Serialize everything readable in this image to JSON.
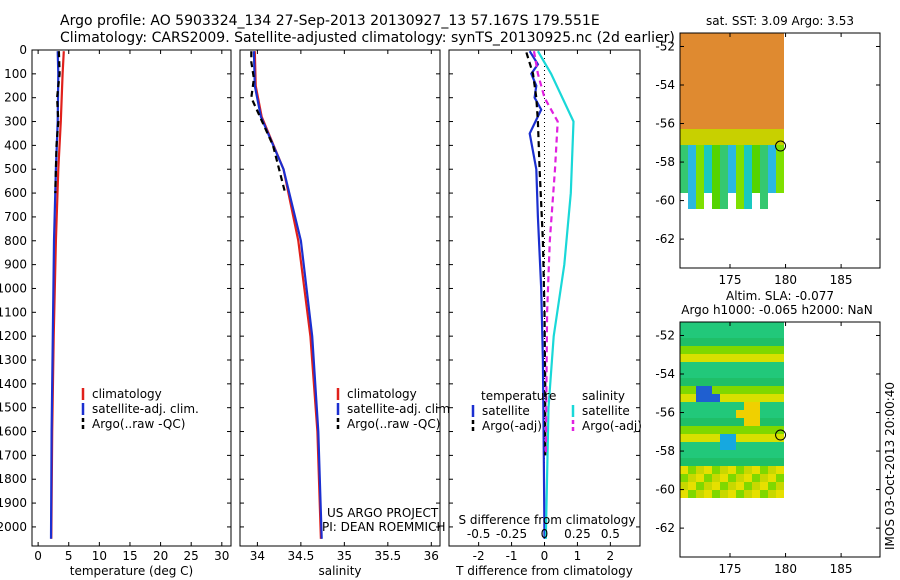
{
  "header": {
    "line1": "Argo profile: AO 5903324_134 27-Sep-2013 20130927_13 57.167S 179.551E",
    "line2": "Climatology: CARS2009. Satellite-adjusted climatology: synTS_20130925.nc (2d earlier)"
  },
  "watermark": "IMOS 03-Oct-2013 20:00:40",
  "colors": {
    "climatology": "#e0201b",
    "satellite": "#1b2fd0",
    "argo": "#000000",
    "sat_s": "#19d8d8",
    "argo_s": "#e020e0"
  },
  "chart_data": [
    {
      "type": "line",
      "id": "temperature",
      "xlabel": "temperature (deg C)",
      "ylabel": "",
      "xlim": [
        -1,
        31.5
      ],
      "ylim": [
        2080,
        0
      ],
      "xticks": [
        0,
        5,
        10,
        15,
        20,
        25,
        30
      ],
      "yticks": [
        0,
        100,
        200,
        300,
        400,
        500,
        600,
        700,
        800,
        900,
        1000,
        1100,
        1200,
        1300,
        1400,
        1500,
        1600,
        1700,
        1800,
        1900,
        2000
      ],
      "legend": [
        "climatology",
        "satellite-adj. clim.",
        "Argo(..raw -QC)"
      ],
      "series": [
        {
          "name": "climatology",
          "color": "climatology",
          "points": [
            [
              4.2,
              5
            ],
            [
              4.0,
              100
            ],
            [
              3.7,
              300
            ],
            [
              3.3,
              500
            ],
            [
              2.9,
              800
            ],
            [
              2.55,
              1200
            ],
            [
              2.3,
              1600
            ],
            [
              2.15,
              2050
            ]
          ]
        },
        {
          "name": "satellite-adj. clim.",
          "color": "satellite",
          "points": [
            [
              3.2,
              5
            ],
            [
              3.3,
              100
            ],
            [
              3.2,
              300
            ],
            [
              2.9,
              500
            ],
            [
              2.6,
              800
            ],
            [
              2.4,
              1200
            ],
            [
              2.2,
              1600
            ],
            [
              2.1,
              2050
            ]
          ]
        },
        {
          "name": "Argo(..raw -QC)",
          "color": "argo",
          "dashed": true,
          "points": [
            [
              3.4,
              5
            ],
            [
              3.5,
              100
            ],
            [
              3.1,
              200
            ],
            [
              3.3,
              300
            ],
            [
              3.0,
              400
            ],
            [
              2.8,
              600
            ]
          ]
        }
      ]
    },
    {
      "type": "line",
      "id": "salinity",
      "xlabel": "salinity",
      "ylabel": "",
      "xlim": [
        33.8,
        36.1
      ],
      "ylim": [
        2080,
        0
      ],
      "xticks": [
        34,
        34.5,
        35,
        35.5,
        36
      ],
      "yticks": [
        0,
        100,
        200,
        300,
        400,
        500,
        600,
        700,
        800,
        900,
        1000,
        1100,
        1200,
        1300,
        1400,
        1500,
        1600,
        1700,
        1800,
        1900,
        2000
      ],
      "legend": [
        "climatology",
        "satellite-adj. clim.",
        "Argo(..raw -QC)"
      ],
      "annotations": [
        "US ARGO PROJECT",
        "PI: DEAN ROEMMICH"
      ],
      "series": [
        {
          "name": "climatology",
          "color": "climatology",
          "points": [
            [
              33.97,
              5
            ],
            [
              33.98,
              150
            ],
            [
              34.05,
              280
            ],
            [
              34.3,
              500
            ],
            [
              34.47,
              800
            ],
            [
              34.61,
              1200
            ],
            [
              34.69,
              1600
            ],
            [
              34.73,
              2050
            ]
          ]
        },
        {
          "name": "satellite-adj. clim.",
          "color": "satellite",
          "points": [
            [
              33.96,
              5
            ],
            [
              33.97,
              150
            ],
            [
              34.04,
              280
            ],
            [
              34.3,
              500
            ],
            [
              34.5,
              800
            ],
            [
              34.63,
              1200
            ],
            [
              34.7,
              1600
            ],
            [
              34.74,
              2050
            ]
          ]
        },
        {
          "name": "Argo(..raw -QC)",
          "color": "argo",
          "dashed": true,
          "points": [
            [
              33.93,
              5
            ],
            [
              33.93,
              50
            ],
            [
              33.96,
              120
            ],
            [
              33.93,
              200
            ],
            [
              34.03,
              280
            ],
            [
              34.18,
              400
            ],
            [
              34.32,
              600
            ]
          ]
        }
      ]
    },
    {
      "type": "line",
      "id": "difference",
      "xlabel": "T difference from climatology",
      "ylabel": "",
      "xtitle2": "S difference from climatology",
      "xlim": [
        -2.9,
        2.9
      ],
      "ylim": [
        2080,
        0
      ],
      "xticks": [
        -2,
        -1,
        0,
        1,
        2
      ],
      "xticks2": [
        -0.5,
        -0.25,
        0,
        0.25,
        0.5
      ],
      "xticks2_labels": [
        "-0.5",
        "-0.25",
        "0",
        "0.25",
        "0.5"
      ],
      "yticks": [
        0,
        100,
        200,
        300,
        400,
        500,
        600,
        700,
        800,
        900,
        1000,
        1100,
        1200,
        1300,
        1400,
        1500,
        1600,
        1700,
        1800,
        1900,
        2000
      ],
      "legend_titles": [
        "temperature",
        "salinity"
      ],
      "legend": [
        "satellite",
        "Argo(-adj)",
        "satellite",
        "Argo(-adj)"
      ],
      "series": [
        {
          "name": "satellite",
          "color": "satellite",
          "points": [
            [
              -0.45,
              5
            ],
            [
              -0.2,
              60
            ],
            [
              -0.4,
              100
            ],
            [
              -0.25,
              150
            ],
            [
              -0.3,
              200
            ],
            [
              -0.1,
              250
            ],
            [
              -0.45,
              350
            ],
            [
              -0.25,
              500
            ],
            [
              -0.2,
              700
            ],
            [
              -0.1,
              1000
            ],
            [
              -0.05,
              1300
            ],
            [
              -0.02,
              1700
            ],
            [
              0,
              2050
            ]
          ]
        },
        {
          "name": "Argo(-adj)",
          "color": "argo",
          "dashed": true,
          "points": [
            [
              -0.55,
              10
            ],
            [
              -0.35,
              100
            ],
            [
              -0.25,
              200
            ],
            [
              -0.2,
              300
            ],
            [
              -0.15,
              500
            ],
            [
              -0.05,
              800
            ],
            [
              0,
              1100
            ],
            [
              0.02,
              1400
            ],
            [
              0.02,
              1700
            ]
          ]
        },
        {
          "name": "satellite",
          "color": "sat_s",
          "points": [
            [
              -0.05,
              5
            ],
            [
              0.05,
              100
            ],
            [
              0.22,
              300
            ],
            [
              0.2,
              600
            ],
            [
              0.15,
              900
            ],
            [
              0.07,
              1200
            ],
            [
              0.03,
              1500
            ],
            [
              0.01,
              2050
            ]
          ]
        },
        {
          "name": "Argo(-adj)",
          "color": "argo_s",
          "dashed": true,
          "points": [
            [
              -0.08,
              5
            ],
            [
              -0.05,
              100
            ],
            [
              0.0,
              200
            ],
            [
              0.1,
              300
            ],
            [
              0.08,
              500
            ],
            [
              0.04,
              800
            ],
            [
              0.02,
              1100
            ],
            [
              0.01,
              1700
            ]
          ]
        }
      ]
    }
  ],
  "maps": [
    {
      "id": "sst",
      "title": "sat. SST: 3.09 Argo: 3.53",
      "title2": "",
      "xticks": [
        175,
        180,
        185
      ],
      "yticks": [
        -52,
        -54,
        -56,
        -58,
        -60,
        -62
      ],
      "xlim": [
        170.5,
        188.5
      ],
      "ylim": [
        -51.3,
        -63.5
      ],
      "marker": [
        179.551,
        -57.167
      ]
    },
    {
      "id": "sla",
      "title": "Altim. SLA: -0.077",
      "title2": "Argo h1000: -0.065 h2000: NaN",
      "xticks": [
        175,
        180,
        185
      ],
      "yticks": [
        -52,
        -54,
        -56,
        -58,
        -60,
        -62
      ],
      "xlim": [
        170.5,
        188.5
      ],
      "ylim": [
        -51.3,
        -63.5
      ],
      "marker": [
        179.551,
        -57.167
      ]
    }
  ]
}
